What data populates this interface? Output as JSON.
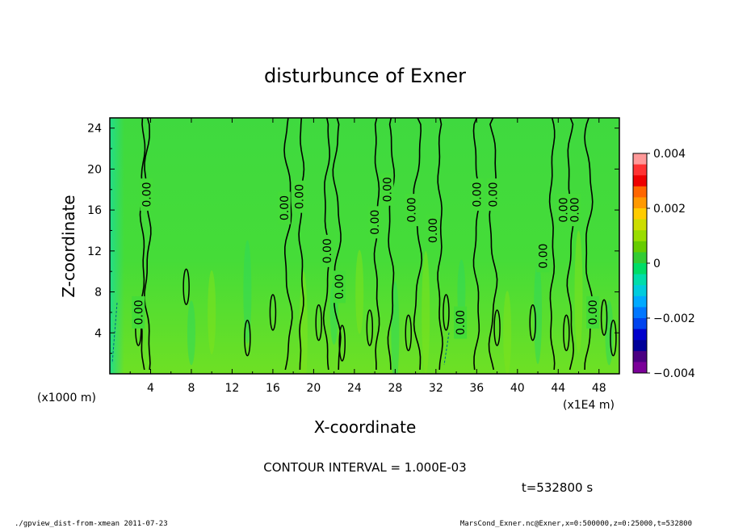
{
  "chart_data": {
    "type": "heatmap",
    "title": "disturbunce of Exner",
    "xlabel": "X-coordinate",
    "ylabel": "Z-coordinate",
    "x_unit_left": "(x1000 m)",
    "x_unit_right": "(x1E4 m)",
    "xlim": [
      0,
      50
    ],
    "ylim": [
      0,
      25
    ],
    "x_ticks": [
      "4",
      "8",
      "12",
      "16",
      "20",
      "24",
      "28",
      "32",
      "36",
      "40",
      "44",
      "48"
    ],
    "y_ticks": [
      "4",
      "8",
      "12",
      "16",
      "20",
      "24"
    ],
    "colorbar": {
      "min": -0.004,
      "max": 0.004,
      "tick_labels": [
        "0.004",
        "0.002",
        "0",
        "−0.002",
        "−0.004"
      ],
      "colors": [
        "#ff9999",
        "#ff3333",
        "#ee0000",
        "#ff6600",
        "#ff9900",
        "#ffcc00",
        "#ccdd00",
        "#99dd00",
        "#66cc00",
        "#33cc33",
        "#00dd66",
        "#00ddaa",
        "#00ccdd",
        "#00aaff",
        "#0077ff",
        "#0044ee",
        "#0000cc",
        "#000099",
        "#4b0082",
        "#7b0099"
      ]
    },
    "contour_label": "0.00",
    "contour_interval": "CONTOUR INTERVAL = 1.000E-03",
    "time": "t=532800  s",
    "zero_contour_x": [
      3.2,
      3.7,
      17.5,
      18.8,
      21.3,
      22.3,
      26.2,
      27.6,
      30.2,
      32.4,
      36.0,
      37.6,
      43.4,
      45.2,
      47.0
    ]
  },
  "footer": {
    "left": "./gpview_dist-from-xmean  2011-07-23",
    "right": "MarsCond_Exner.nc@Exner,x=0:500000,z=0:25000,t=532800"
  }
}
